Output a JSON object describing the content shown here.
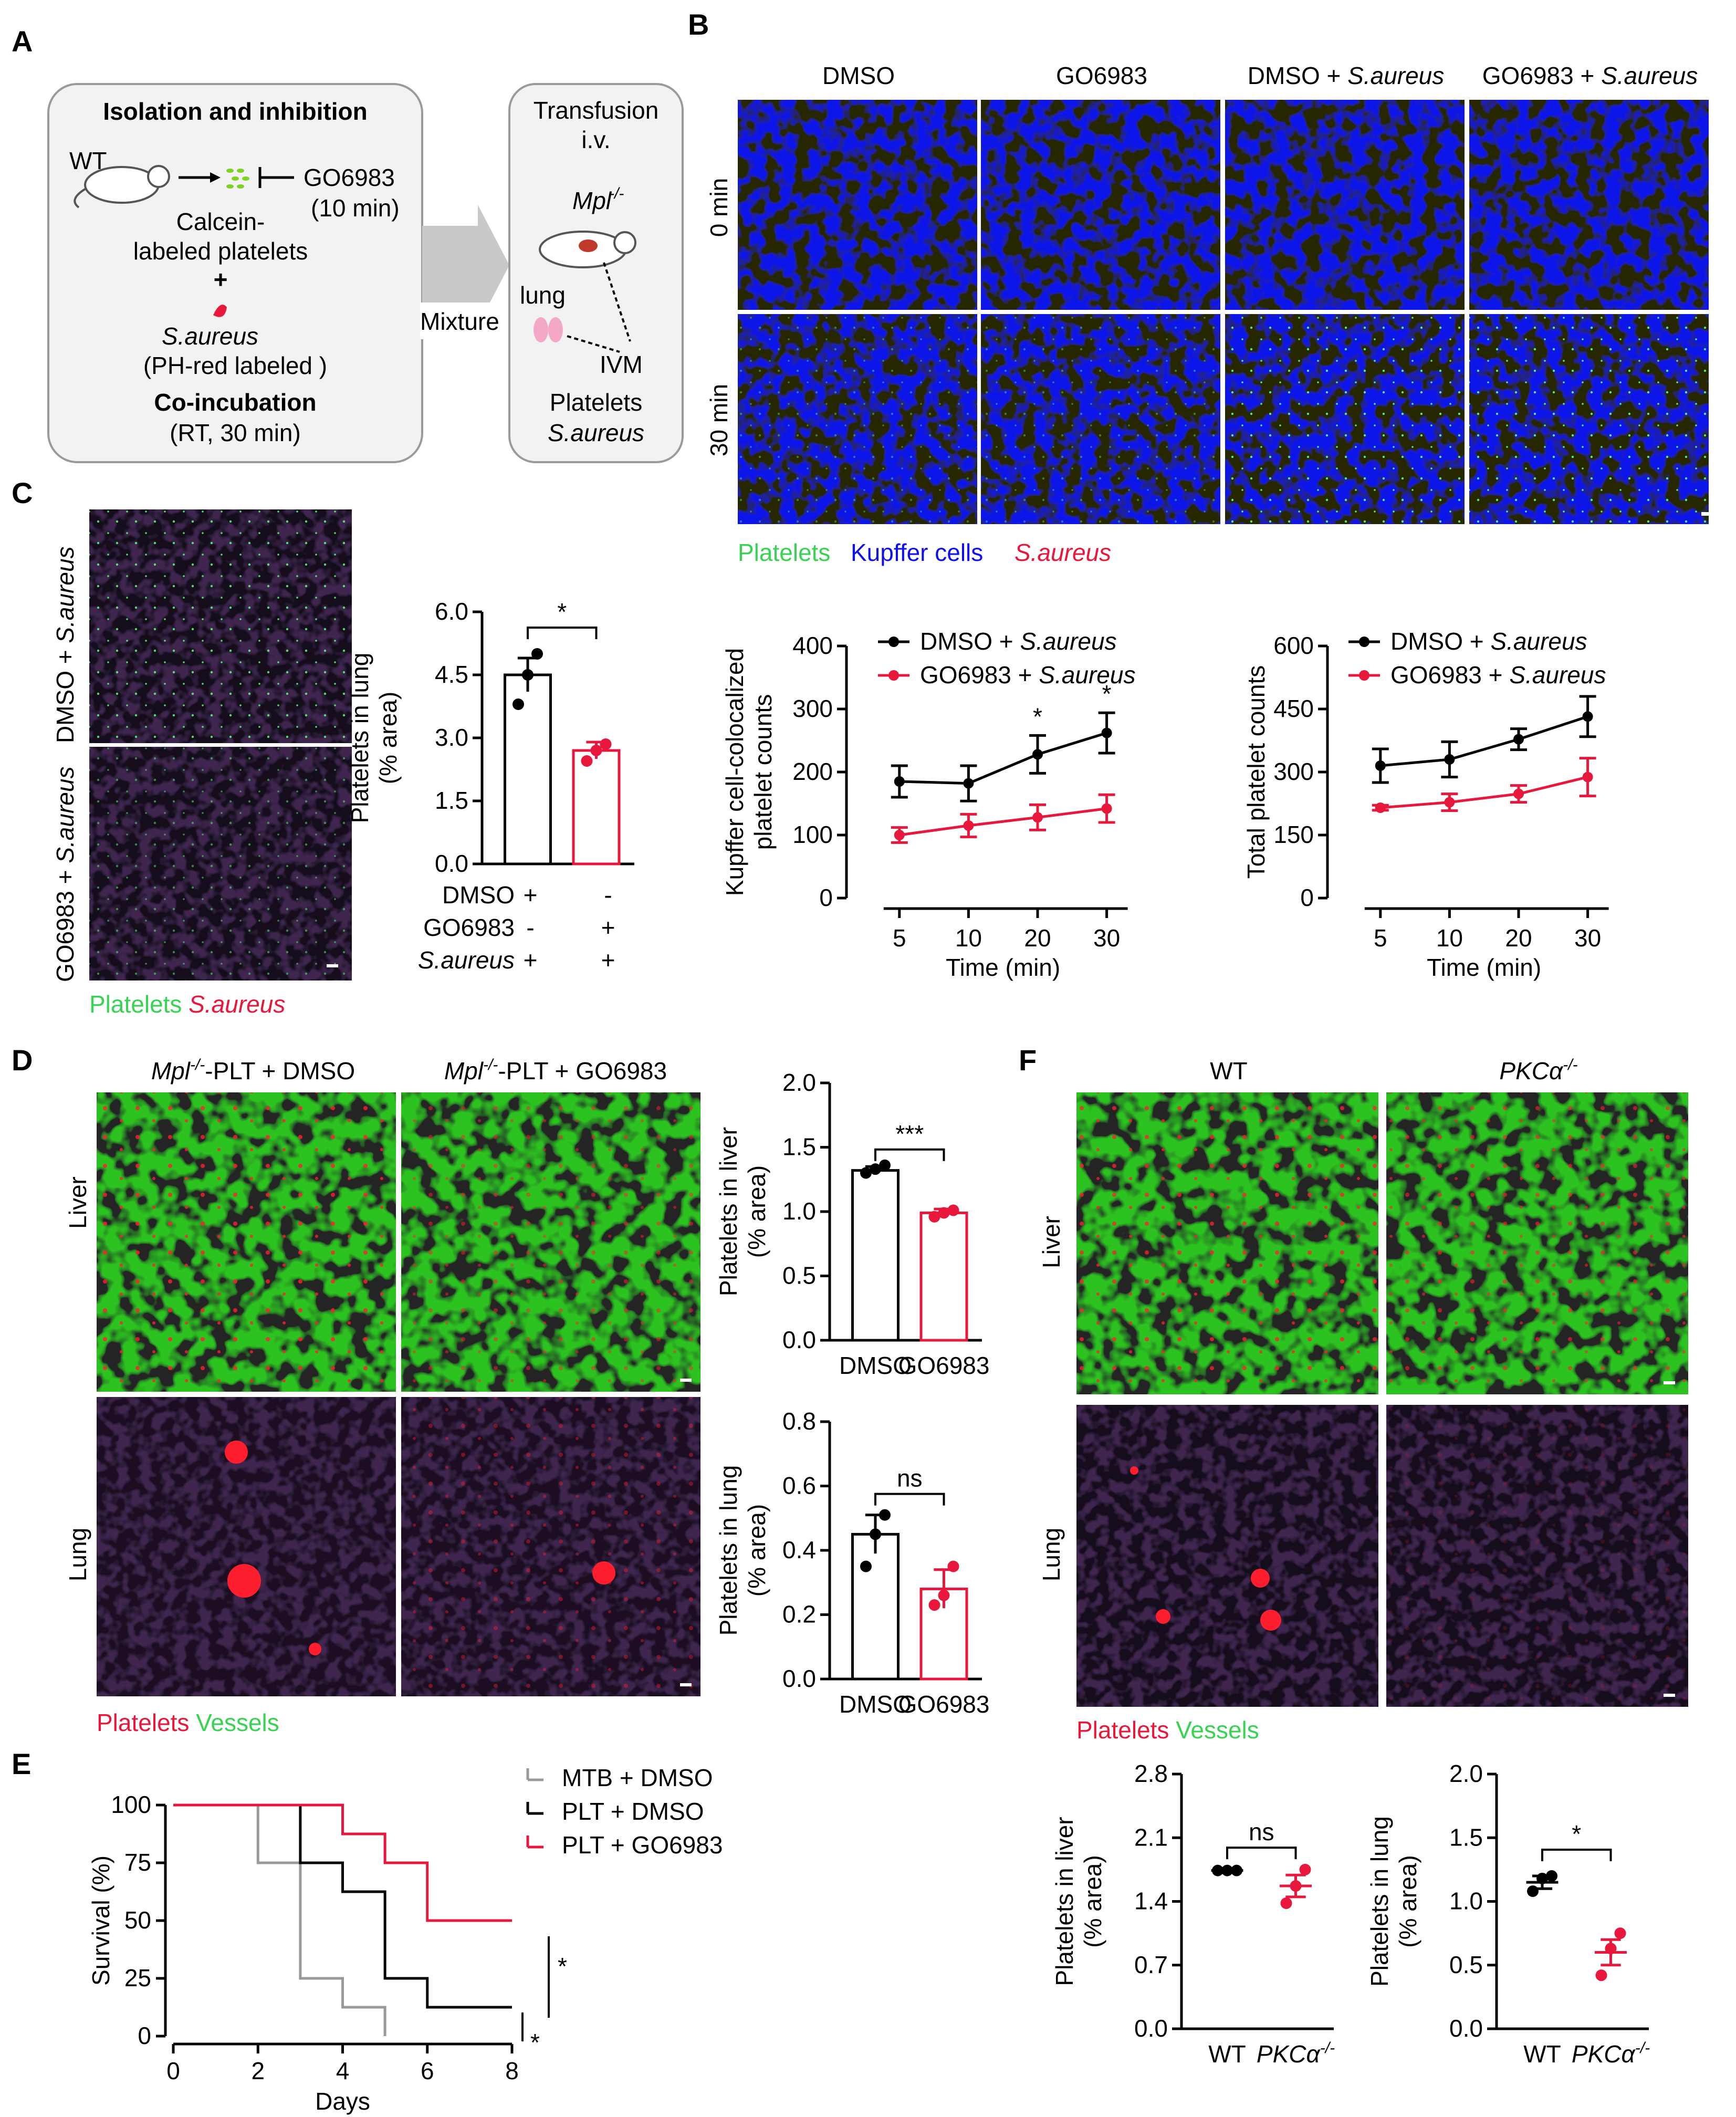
{
  "panel_labels": {
    "a": "A",
    "b": "B",
    "c": "C",
    "d": "D",
    "e": "E",
    "f": "F"
  },
  "colors": {
    "black": "#000000",
    "red": "#e8173c",
    "grey": "#999999",
    "green": "#39d353",
    "blue": "#1010ee",
    "magenta": "#a35ad2"
  },
  "panelA": {
    "title": "Isolation and inhibition",
    "wt": "WT",
    "inhibitor": "GO6983",
    "inhibitor_time": "(10 min)",
    "platelets_line1": "Calcein-",
    "platelets_line2": "labeled platelets",
    "plus": "+",
    "bacteria": "S.aureus",
    "bacteria_label": "(PH-red labeled )",
    "coinc": "Co-incubation",
    "coinc_time": "(RT, 30 min)",
    "mixture": "Mixture",
    "transfusion": "Transfusion",
    "iv": "i.v.",
    "mouse": "Mpl",
    "mouse_sup": "-/-",
    "lung": "lung",
    "ivm": "IVM",
    "out1": "Platelets",
    "out2": "S.aureus"
  },
  "panelB": {
    "columns": [
      {
        "plain": "DMSO",
        "ital": ""
      },
      {
        "plain": "GO6983",
        "ital": ""
      },
      {
        "plain": "DMSO + ",
        "ital": "S.aureus"
      },
      {
        "plain": "GO6983 + ",
        "ital": "S.aureus"
      }
    ],
    "rows": [
      "0 min",
      "30 min"
    ],
    "legend": [
      {
        "text": "Platelets",
        "color": "#39d353"
      },
      {
        "text": "Kupffer cells",
        "color": "#1010ee"
      },
      {
        "text": "S.aureus",
        "color": "#e8173c"
      }
    ]
  },
  "panelC": {
    "row_top_plain": "DMSO + ",
    "row_top_ital": "S.aureus",
    "row_bottom_plain": "GO6983 + ",
    "row_bottom_ital": "S.aureus",
    "legend_platelets": "Platelets",
    "legend_bacteria": "S.aureus",
    "table_labels": [
      "DMSO",
      "GO6983",
      "S.aureus"
    ],
    "table_col1": [
      "+",
      "-",
      "+"
    ],
    "table_col2": [
      "-",
      "+",
      "+"
    ]
  },
  "panelD": {
    "col1_prefix": "Mpl",
    "col1_sup": "-/-",
    "col1_suffix": "-PLT + DMSO",
    "col2_prefix": "Mpl",
    "col2_sup": "-/-",
    "col2_suffix": "-PLT + GO6983",
    "rows": [
      "Liver",
      "Lung"
    ],
    "legend_platelets": "Platelets",
    "legend_vessels": "Vessels"
  },
  "panelF": {
    "col1": "WT",
    "col2": "PKCα",
    "col2_sup": "-/-",
    "rows": [
      "Liver",
      "Lung"
    ],
    "legend_platelets": "Platelets",
    "legend_vessels": "Vessels"
  },
  "chart_data": [
    {
      "id": "C-bar-lung",
      "type": "bar",
      "ylabel_lines": [
        "Platelets in lung",
        "(% area)"
      ],
      "ylim": [
        0,
        6.0
      ],
      "yticks": [
        "0.0",
        "1.5",
        "3.0",
        "4.5",
        "6.0"
      ],
      "categories": [
        "DMSO + S.aureus",
        "GO6983 + S.aureus"
      ],
      "values": [
        4.5,
        2.7
      ],
      "errors": [
        0.4,
        0.2
      ],
      "points": [
        [
          3.8,
          4.5,
          5.0
        ],
        [
          2.45,
          2.7,
          2.85
        ]
      ],
      "colors": [
        "#000000",
        "#e8173c"
      ],
      "significance": "*"
    },
    {
      "id": "B-line-kupffer",
      "type": "line",
      "ylabel_lines": [
        "Kupffer cell-colocalized",
        "platelet counts"
      ],
      "xlabel": "Time (min)",
      "x": [
        "5",
        "10",
        "20",
        "30"
      ],
      "ylim": [
        0,
        400
      ],
      "yticks": [
        "0",
        "100",
        "200",
        "300",
        "400"
      ],
      "series": [
        {
          "name_plain": "DMSO + ",
          "name_ital": "S.aureus",
          "color": "#000000",
          "values": [
            185,
            182,
            228,
            262
          ],
          "errors": [
            25,
            28,
            30,
            32
          ]
        },
        {
          "name_plain": "GO6983 + ",
          "name_ital": "S.aureus",
          "color": "#e8173c",
          "values": [
            100,
            115,
            128,
            142
          ],
          "errors": [
            12,
            18,
            20,
            22
          ]
        }
      ],
      "annotations": [
        {
          "x": "20",
          "text": "*"
        },
        {
          "x": "30",
          "text": "*"
        }
      ]
    },
    {
      "id": "B-line-total",
      "type": "line",
      "ylabel_lines": [
        "Total  platelet counts"
      ],
      "xlabel": "Time (min)",
      "x": [
        "5",
        "10",
        "20",
        "30"
      ],
      "ylim": [
        0,
        600
      ],
      "yticks": [
        "0",
        "150",
        "300",
        "450",
        "600"
      ],
      "series": [
        {
          "name_plain": "DMSO + ",
          "name_ital": "S.aureus",
          "color": "#000000",
          "values": [
            315,
            330,
            378,
            432
          ],
          "errors": [
            40,
            42,
            25,
            48
          ]
        },
        {
          "name_plain": "GO6983 + ",
          "name_ital": "S.aureus",
          "color": "#e8173c",
          "values": [
            215,
            228,
            248,
            288
          ],
          "errors": [
            6,
            20,
            20,
            45
          ]
        }
      ]
    },
    {
      "id": "D-bar-liver",
      "type": "bar",
      "ylabel_lines": [
        "Platelets in liver",
        "(% area)"
      ],
      "ylim": [
        0,
        2.0
      ],
      "yticks": [
        "0.0",
        "0.5",
        "1.0",
        "1.5",
        "2.0"
      ],
      "categories": [
        "DMSO",
        "GO6983"
      ],
      "values": [
        1.32,
        0.99
      ],
      "errors": [
        0.03,
        0.03
      ],
      "points": [
        [
          1.3,
          1.33,
          1.36
        ],
        [
          0.96,
          0.99,
          1.01
        ]
      ],
      "colors": [
        "#000000",
        "#e8173c"
      ],
      "significance": "***"
    },
    {
      "id": "D-bar-lung",
      "type": "bar",
      "ylabel_lines": [
        "Platelets in lung",
        "(% area)"
      ],
      "ylim": [
        0,
        0.8
      ],
      "yticks": [
        "0.0",
        "0.2",
        "0.4",
        "0.6",
        "0.8"
      ],
      "categories": [
        "DMSO",
        "GO6983"
      ],
      "values": [
        0.45,
        0.28
      ],
      "errors": [
        0.06,
        0.06
      ],
      "points": [
        [
          0.35,
          0.45,
          0.51
        ],
        [
          0.23,
          0.26,
          0.35
        ]
      ],
      "colors": [
        "#000000",
        "#e8173c"
      ],
      "significance": "ns"
    },
    {
      "id": "E-survival",
      "type": "line",
      "xlabel": "Days",
      "ylabel_lines": [
        "Survival (%)"
      ],
      "xlim": [
        0,
        8
      ],
      "xticks": [
        "0",
        "2",
        "4",
        "6",
        "8"
      ],
      "ylim": [
        0,
        100
      ],
      "yticks": [
        "0",
        "25",
        "50",
        "75",
        "100"
      ],
      "series": [
        {
          "name": "MTB + DMSO",
          "color": "#999999",
          "steps": [
            [
              0,
              100
            ],
            [
              2,
              75
            ],
            [
              3,
              25
            ],
            [
              4,
              12.5
            ],
            [
              5,
              0
            ]
          ]
        },
        {
          "name": "PLT + DMSO",
          "color": "#000000",
          "steps": [
            [
              0,
              100
            ],
            [
              3,
              75
            ],
            [
              4,
              62.5
            ],
            [
              5,
              25
            ],
            [
              6,
              12.5
            ],
            [
              8,
              12.5
            ]
          ]
        },
        {
          "name": "PLT + GO6983",
          "color": "#e8173c",
          "steps": [
            [
              0,
              100
            ],
            [
              4,
              87.5
            ],
            [
              5,
              75
            ],
            [
              6,
              50
            ],
            [
              8,
              50
            ]
          ]
        }
      ],
      "significance": [
        "*",
        "*"
      ]
    },
    {
      "id": "F-scatter-liver",
      "type": "scatter",
      "ylabel_lines": [
        "Platelets in liver",
        "(% area)"
      ],
      "ylim": [
        0,
        2.8
      ],
      "yticks": [
        "0.0",
        "0.7",
        "1.4",
        "2.1",
        "2.8"
      ],
      "categories": [
        "WT",
        "PKCα-/-"
      ],
      "values": [
        1.74,
        1.57
      ],
      "errors": [
        0.02,
        0.12
      ],
      "points": [
        [
          1.74,
          1.74,
          1.74
        ],
        [
          1.38,
          1.57,
          1.75
        ]
      ],
      "colors": [
        "#000000",
        "#e8173c"
      ],
      "significance": "ns"
    },
    {
      "id": "F-scatter-lung",
      "type": "scatter",
      "ylabel_lines": [
        "Platelets in lung",
        "(% area)"
      ],
      "ylim": [
        0,
        2.0
      ],
      "yticks": [
        "0.0",
        "0.5",
        "1.0",
        "1.5",
        "2.0"
      ],
      "categories": [
        "WT",
        "PKCα-/-"
      ],
      "values": [
        1.15,
        0.6
      ],
      "errors": [
        0.05,
        0.1
      ],
      "points": [
        [
          1.08,
          1.18,
          1.2
        ],
        [
          0.42,
          0.63,
          0.75
        ]
      ],
      "colors": [
        "#000000",
        "#e8173c"
      ],
      "significance": "*"
    }
  ]
}
